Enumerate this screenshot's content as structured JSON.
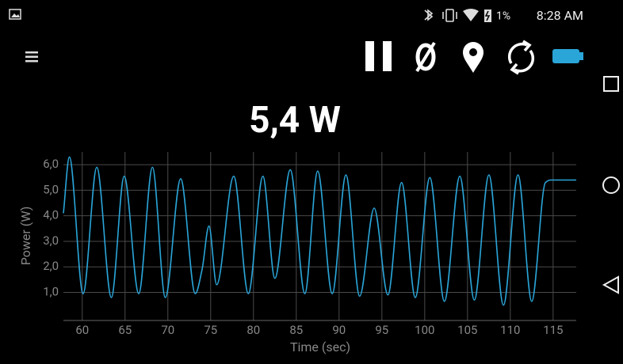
{
  "status_bar": {
    "battery": "1%",
    "time": "8:28 AM"
  },
  "reading": "5,4 W",
  "chart_data": {
    "type": "line",
    "xlabel": "Time (sec)",
    "ylabel": "Power (W)",
    "xlim": [
      57.8,
      117.7
    ],
    "ylim": [
      -0.1,
      6.5
    ],
    "xticks": [
      60,
      65,
      70,
      75,
      80,
      85,
      90,
      95,
      100,
      105,
      110,
      115
    ],
    "yticks": [
      {
        "value": 1,
        "label": "1,0"
      },
      {
        "value": 2,
        "label": "2,0"
      },
      {
        "value": 3,
        "label": "3,0"
      },
      {
        "value": 4,
        "label": "4,0"
      },
      {
        "value": 5,
        "label": "5,0"
      },
      {
        "value": 6,
        "label": "6,0"
      }
    ],
    "grid": true,
    "series": [
      {
        "name": "Power",
        "color": "#2aa5d8",
        "x": [
          57.8,
          58.5,
          60.1,
          61.7,
          63.4,
          64.9,
          66.6,
          68.2,
          69.7,
          71.5,
          73.2,
          74.0,
          74.8,
          75.7,
          77.7,
          79.4,
          81.1,
          82.5,
          84.3,
          86.0,
          87.5,
          89.2,
          90.8,
          92.4,
          94.1,
          95.7,
          97.3,
          98.9,
          100.6,
          102.3,
          104.1,
          105.8,
          107.5,
          109.2,
          110.9,
          112.5,
          114.1,
          114.7,
          117.7
        ],
        "values": [
          4.1,
          6.3,
          0.95,
          5.9,
          0.8,
          5.55,
          0.95,
          5.9,
          0.8,
          5.45,
          0.95,
          1.9,
          3.6,
          1.3,
          5.55,
          0.95,
          5.55,
          1.55,
          5.8,
          0.95,
          5.75,
          0.95,
          5.6,
          0.85,
          4.3,
          0.9,
          5.3,
          0.8,
          5.5,
          0.65,
          5.55,
          0.7,
          5.6,
          0.5,
          5.6,
          0.65,
          5.3,
          5.4,
          5.4
        ]
      }
    ]
  }
}
